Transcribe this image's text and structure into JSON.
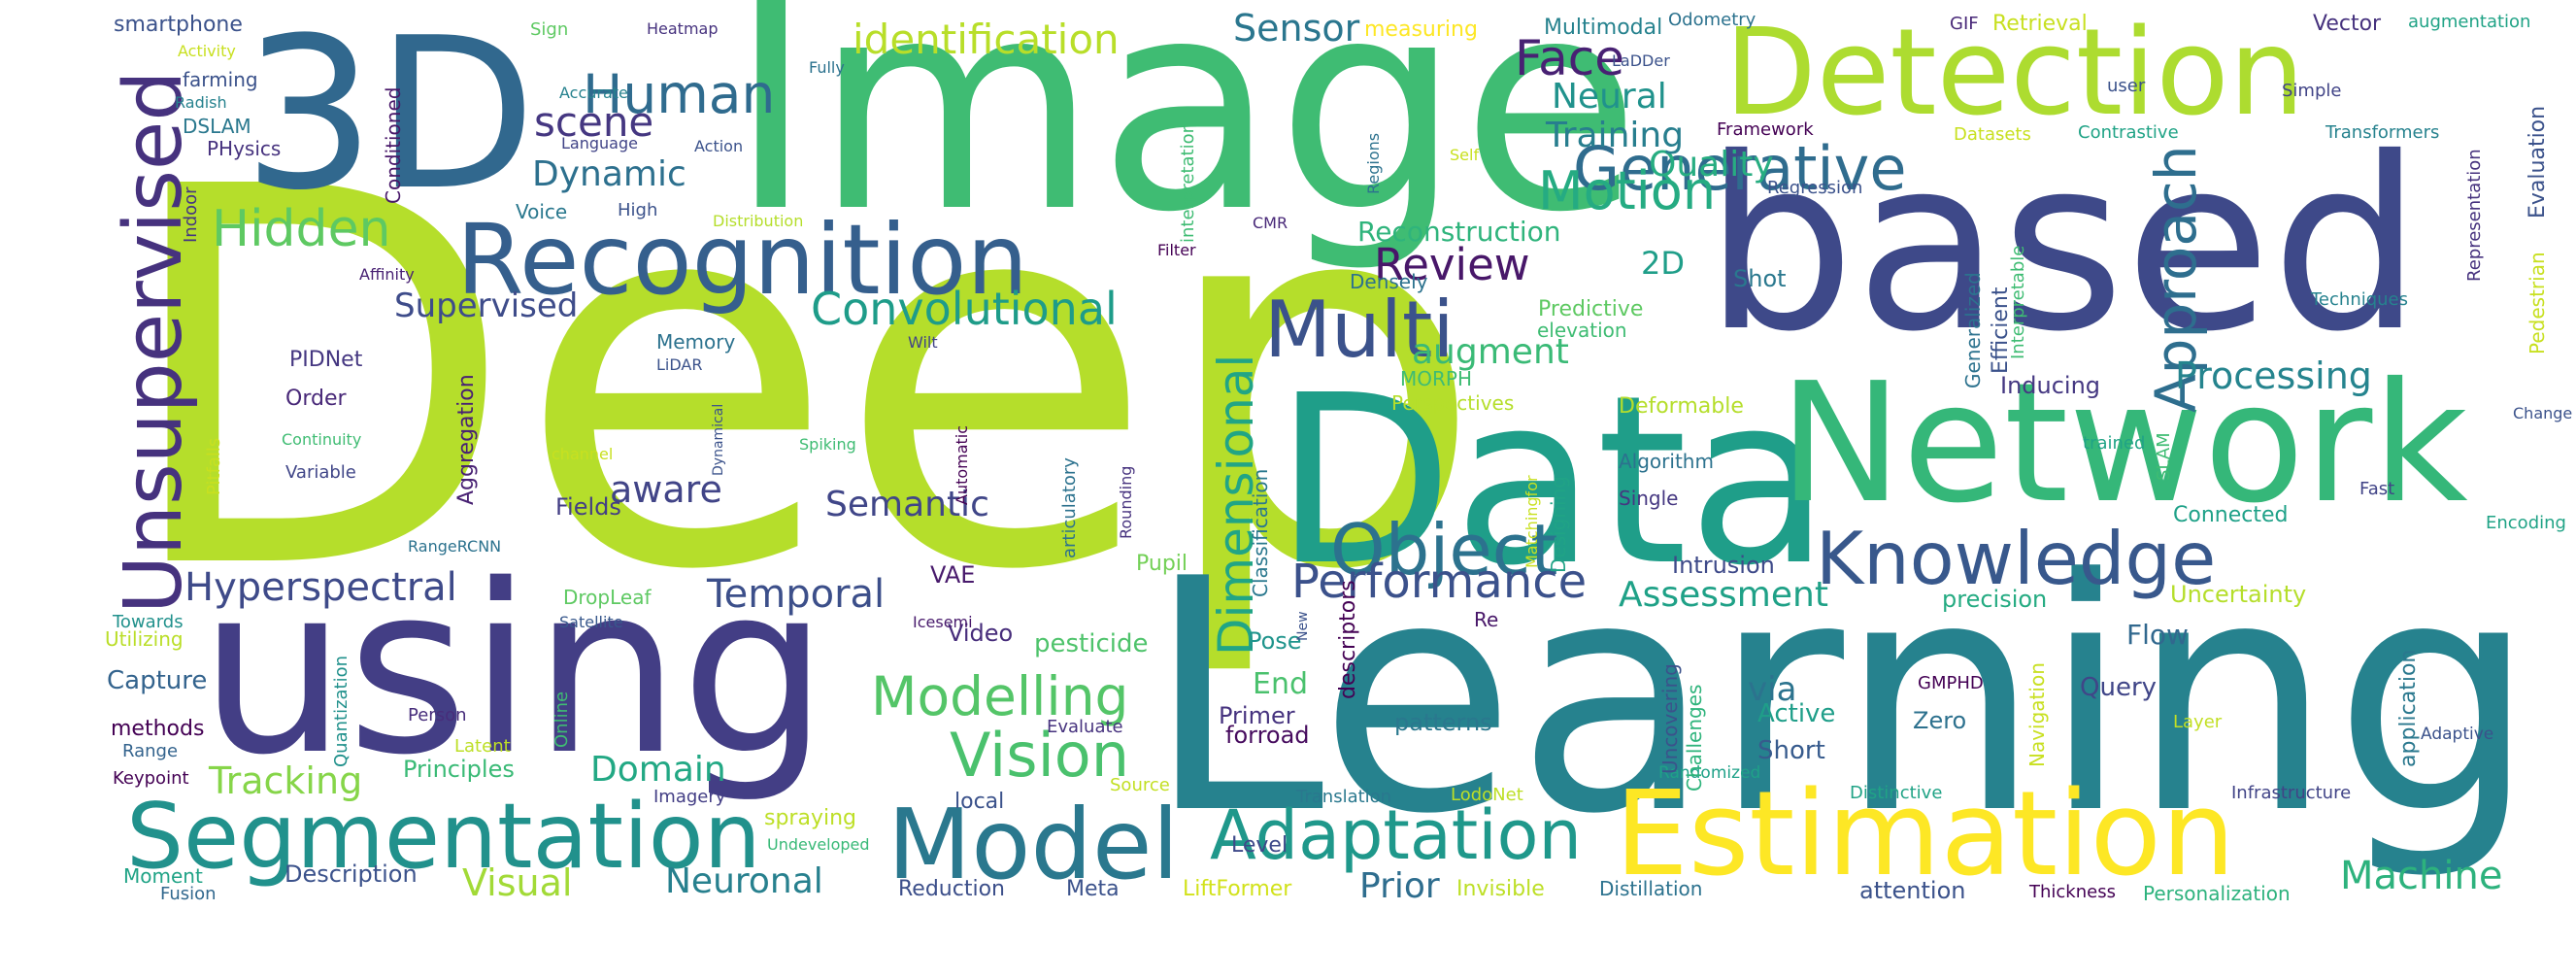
{
  "cloud": {
    "words": [
      {
        "text": "Deep",
        "color": "#b5de2b"
      },
      {
        "text": "Learning",
        "color": "#26828e"
      },
      {
        "text": "Image",
        "color": "#3fbc73"
      },
      {
        "text": "Data",
        "color": "#1f9e89"
      },
      {
        "text": "based",
        "color": "#3e4989"
      },
      {
        "text": "using",
        "color": "#433e85"
      },
      {
        "text": "Network",
        "color": "#35b779"
      },
      {
        "text": "3D",
        "color": "#31688e"
      },
      {
        "text": "Detection",
        "color": "#addc30"
      },
      {
        "text": "Recognition",
        "color": "#355f8d"
      },
      {
        "text": "Estimation",
        "color": "#fde725"
      },
      {
        "text": "Model",
        "color": "#2a788e"
      },
      {
        "text": "Segmentation",
        "color": "#21918c"
      },
      {
        "text": "Unsupervised",
        "color": "#46327e"
      },
      {
        "text": "Knowledge",
        "color": "#38588c"
      },
      {
        "text": "Object",
        "color": "#2c728e"
      },
      {
        "text": "Multi",
        "color": "#3b528b"
      },
      {
        "text": "Generative",
        "color": "#2f6c8e"
      },
      {
        "text": "Adaptation",
        "color": "#1f988b"
      },
      {
        "text": "Vision",
        "color": "#4ac16d"
      },
      {
        "text": "Dimensional",
        "color": "#21a585"
      },
      {
        "text": "Approach",
        "color": "#2e6e8e"
      },
      {
        "text": "Convolutional",
        "color": "#1e9c89"
      },
      {
        "text": "Performance",
        "color": "#3b518b"
      },
      {
        "text": "Modelling",
        "color": "#54c568"
      },
      {
        "text": "Motion",
        "color": "#25ab82"
      },
      {
        "text": "Hidden",
        "color": "#5ec962"
      },
      {
        "text": "Human",
        "color": "#2f6b8e"
      },
      {
        "text": "Face",
        "color": "#482173"
      },
      {
        "text": "Review",
        "color": "#481769"
      },
      {
        "text": "identification",
        "color": "#b8de29"
      },
      {
        "text": "Machine",
        "color": "#2db27d"
      },
      {
        "text": "Hyperspectral",
        "color": "#3e4a89"
      },
      {
        "text": "scene",
        "color": "#453781"
      },
      {
        "text": "Temporal",
        "color": "#3c4f8a"
      },
      {
        "text": "Semantic",
        "color": "#404688"
      },
      {
        "text": "Tracking",
        "color": "#86d549"
      },
      {
        "text": "Processing",
        "color": "#25848e"
      },
      {
        "text": "Assessment",
        "color": "#1fa187"
      },
      {
        "text": "Quality",
        "color": "#27ad81"
      },
      {
        "text": "Sensor",
        "color": "#2a768e"
      },
      {
        "text": "Training",
        "color": "#277e8e"
      },
      {
        "text": "Neural",
        "color": "#20928c"
      },
      {
        "text": "Dynamic",
        "color": "#2d708e"
      },
      {
        "text": "Supervised",
        "color": "#3e4c8a"
      },
      {
        "text": "aware",
        "color": "#414487"
      },
      {
        "text": "Visual",
        "color": "#a2da37"
      },
      {
        "text": "Domain",
        "color": "#22a884"
      },
      {
        "text": "Neuronal",
        "color": "#27808e"
      },
      {
        "text": "Prior",
        "color": "#2e6d8e"
      },
      {
        "text": "augment",
        "color": "#3aba76"
      },
      {
        "text": "Reconstruction",
        "color": "#2fb47c"
      },
      {
        "text": "via",
        "color": "#2c738e"
      },
      {
        "text": "End",
        "color": "#4ac16d"
      },
      {
        "text": "2D",
        "color": "#1f9e89"
      },
      {
        "text": "Capture",
        "color": "#33638d"
      },
      {
        "text": "Video",
        "color": "#472d7b"
      },
      {
        "text": "Principles",
        "color": "#3aba76"
      },
      {
        "text": "patterns",
        "color": "#2a788e"
      },
      {
        "text": "Intrusion",
        "color": "#3e4a89"
      },
      {
        "text": "precision",
        "color": "#25ab82"
      },
      {
        "text": "Query",
        "color": "#404688"
      },
      {
        "text": "Short",
        "color": "#375b8d"
      },
      {
        "text": "Active",
        "color": "#1f9e89"
      },
      {
        "text": "Zero",
        "color": "#2d718e"
      },
      {
        "text": "Fields",
        "color": "#433e85"
      },
      {
        "text": "Pose",
        "color": "#1f948c"
      },
      {
        "text": "Primer",
        "color": "#46337f"
      },
      {
        "text": "VAE",
        "color": "#481a6c"
      },
      {
        "text": "pesticide",
        "color": "#4ec36b"
      },
      {
        "text": "Pupil",
        "color": "#73d056"
      },
      {
        "text": "Uncertainty",
        "color": "#b5de2b"
      },
      {
        "text": "Flow",
        "color": "#31688e"
      },
      {
        "text": "Inducing",
        "color": "#453882"
      },
      {
        "text": "Connected",
        "color": "#1fa188"
      },
      {
        "text": "attention",
        "color": "#3b528b"
      },
      {
        "text": "Level",
        "color": "#3e4989"
      },
      {
        "text": "forroad",
        "color": "#460b5e"
      },
      {
        "text": "Reduction",
        "color": "#3c4f8a"
      },
      {
        "text": "Meta",
        "color": "#3b528b"
      },
      {
        "text": "LiftFormer",
        "color": "#d2e21b"
      },
      {
        "text": "Invisible",
        "color": "#bddf26"
      },
      {
        "text": "Distillation",
        "color": "#2c728e"
      },
      {
        "text": "Thickness",
        "color": "#440154"
      },
      {
        "text": "Personalization",
        "color": "#2db27d"
      },
      {
        "text": "Description",
        "color": "#3b528b"
      },
      {
        "text": "Moment",
        "color": "#20a386"
      },
      {
        "text": "Fusion",
        "color": "#31688e"
      },
      {
        "text": "methods",
        "color": "#440154"
      },
      {
        "text": "Range",
        "color": "#33638d"
      },
      {
        "text": "Keypoint",
        "color": "#440154"
      },
      {
        "text": "Towards",
        "color": "#21918c"
      },
      {
        "text": "Utilizing",
        "color": "#bade28"
      },
      {
        "text": "Person",
        "color": "#472d7b"
      },
      {
        "text": "Latent",
        "color": "#bddf26"
      },
      {
        "text": "Online",
        "color": "#3fbc73"
      },
      {
        "text": "Quantization",
        "color": "#21918c"
      },
      {
        "text": "Imagery",
        "color": "#433e85"
      },
      {
        "text": "spraying",
        "color": "#bddf26"
      },
      {
        "text": "Undeveloped",
        "color": "#38b977"
      },
      {
        "text": "local",
        "color": "#3b528b"
      },
      {
        "text": "Evaluate",
        "color": "#46327e"
      },
      {
        "text": "Source",
        "color": "#c2df23"
      },
      {
        "text": "Translation",
        "color": "#2a788e"
      },
      {
        "text": "LodoNet",
        "color": "#bddf26"
      },
      {
        "text": "Randomized",
        "color": "#1fa188"
      },
      {
        "text": "Distinctive",
        "color": "#20a386"
      },
      {
        "text": "Infrastructure",
        "color": "#414487"
      },
      {
        "text": "GMPHD",
        "color": "#440154"
      },
      {
        "text": "Layer",
        "color": "#c2df23"
      },
      {
        "text": "Adaptive",
        "color": "#3b528b"
      },
      {
        "text": "Navigation",
        "color": "#c8e020"
      },
      {
        "text": "application",
        "color": "#2a788e"
      },
      {
        "text": "Uncovering",
        "color": "#3b528b"
      },
      {
        "text": "Challenges",
        "color": "#2fb47c"
      },
      {
        "text": "smartphone",
        "color": "#3b528b"
      },
      {
        "text": "Activity",
        "color": "#c8e020"
      },
      {
        "text": "farming",
        "color": "#3b528b"
      },
      {
        "text": "Radish",
        "color": "#26828e"
      },
      {
        "text": "DSLAM",
        "color": "#2a788e"
      },
      {
        "text": "PHysics",
        "color": "#46327e"
      },
      {
        "text": "Indoor",
        "color": "#453781"
      },
      {
        "text": "Affinity",
        "color": "#482173"
      },
      {
        "text": "PIDNet",
        "color": "#453781"
      },
      {
        "text": "Order",
        "color": "#482878"
      },
      {
        "text": "Continuity",
        "color": "#3fbc73"
      },
      {
        "text": "Variable",
        "color": "#404688"
      },
      {
        "text": "RangeRCNN",
        "color": "#2c728e"
      },
      {
        "text": "Pitfalls",
        "color": "#c8e020"
      },
      {
        "text": "DropLeaf",
        "color": "#5ec962"
      },
      {
        "text": "Satellite",
        "color": "#38588c"
      },
      {
        "text": "Conditioned",
        "color": "#481769"
      },
      {
        "text": "Accurate",
        "color": "#26828e"
      },
      {
        "text": "Language",
        "color": "#414487"
      },
      {
        "text": "Action",
        "color": "#3b528b"
      },
      {
        "text": "Sign",
        "color": "#5ec962"
      },
      {
        "text": "Heatmap",
        "color": "#46327e"
      },
      {
        "text": "Fully",
        "color": "#2c728e"
      },
      {
        "text": "Voice",
        "color": "#2a788e"
      },
      {
        "text": "High",
        "color": "#3b528b"
      },
      {
        "text": "Distribution",
        "color": "#b5de2b"
      },
      {
        "text": "Memory",
        "color": "#2c728e"
      },
      {
        "text": "LiDAR",
        "color": "#3b528b"
      },
      {
        "text": "Aggregation",
        "color": "#482173"
      },
      {
        "text": "Dynamical",
        "color": "#3b528b"
      },
      {
        "text": "channel",
        "color": "#c8e020"
      },
      {
        "text": "Spiking",
        "color": "#3fbc73"
      },
      {
        "text": "Wilt",
        "color": "#414487"
      },
      {
        "text": "Automatic",
        "color": "#440154"
      },
      {
        "text": "articulatory",
        "color": "#2c728e"
      },
      {
        "text": "Rounding",
        "color": "#46327e"
      },
      {
        "text": "Icesemi",
        "color": "#481a6c"
      },
      {
        "text": "interpretation",
        "color": "#3fbc73"
      },
      {
        "text": "measuring",
        "color": "#fde725"
      },
      {
        "text": "Multimodal",
        "color": "#26828e"
      },
      {
        "text": "LaDDer",
        "color": "#3b528b"
      },
      {
        "text": "Self",
        "color": "#c8e020"
      },
      {
        "text": "Regions",
        "color": "#2c728e"
      },
      {
        "text": "CMR",
        "color": "#482878"
      },
      {
        "text": "Densely",
        "color": "#2c728e"
      },
      {
        "text": "Filter",
        "color": "#440154"
      },
      {
        "text": "Classification",
        "color": "#2a788e"
      },
      {
        "text": "MORPH",
        "color": "#3fbc73"
      },
      {
        "text": "Perspectives",
        "color": "#b5de2b"
      },
      {
        "text": "elevation",
        "color": "#3fbc73"
      },
      {
        "text": "Predictive",
        "color": "#5ec962"
      },
      {
        "text": "Deformable",
        "color": "#b5de2b"
      },
      {
        "text": "Algorithm",
        "color": "#2c728e"
      },
      {
        "text": "Matchingfor",
        "color": "#c8e020"
      },
      {
        "text": "Designing",
        "color": "#20a386"
      },
      {
        "text": "Single",
        "color": "#453781"
      },
      {
        "text": "Re",
        "color": "#481769"
      },
      {
        "text": "New",
        "color": "#3b528b"
      },
      {
        "text": "descriptors",
        "color": "#440154"
      },
      {
        "text": "Odometry",
        "color": "#2c728e"
      },
      {
        "text": "GIF",
        "color": "#482878"
      },
      {
        "text": "Retrieval",
        "color": "#c8e020"
      },
      {
        "text": "Vector",
        "color": "#46327e"
      },
      {
        "text": "augmentation",
        "color": "#20a386"
      },
      {
        "text": "Framework",
        "color": "#440154"
      },
      {
        "text": "user",
        "color": "#3b528b"
      },
      {
        "text": "Simple",
        "color": "#414487"
      },
      {
        "text": "Datasets",
        "color": "#c8e020"
      },
      {
        "text": "Contrastive",
        "color": "#20a386"
      },
      {
        "text": "Transformers",
        "color": "#26828e"
      },
      {
        "text": "Regression",
        "color": "#3b528b"
      },
      {
        "text": "Evaluation",
        "color": "#3b528b"
      },
      {
        "text": "Representation",
        "color": "#46327e"
      },
      {
        "text": "Pedestrian",
        "color": "#c8e020"
      },
      {
        "text": "Change",
        "color": "#3b528b"
      },
      {
        "text": "Shot",
        "color": "#2a788e"
      },
      {
        "text": "Efficient",
        "color": "#3b528b"
      },
      {
        "text": "Interpretable",
        "color": "#3fbc73"
      },
      {
        "text": "Generalized",
        "color": "#2c728e"
      },
      {
        "text": "Techniques",
        "color": "#26828e"
      },
      {
        "text": "trained",
        "color": "#20a386"
      },
      {
        "text": "SLAM",
        "color": "#3fbc73"
      },
      {
        "text": "Fast",
        "color": "#414487"
      },
      {
        "text": "Encoding",
        "color": "#20a386"
      }
    ]
  }
}
